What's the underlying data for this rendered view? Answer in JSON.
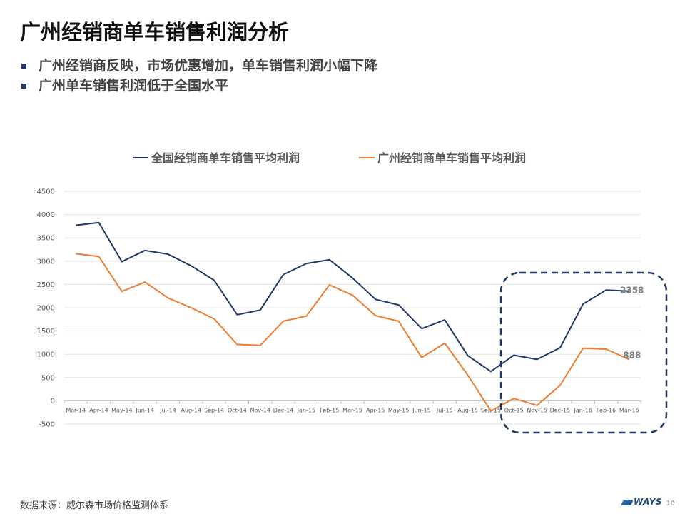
{
  "slide": {
    "title": "广州经销商单车销售利润分析",
    "bullets": [
      "广州经销商反映，市场优惠增加，单车销售利润小幅下降",
      "广州单车销售利润低于全国水平"
    ],
    "source": "数据来源：威尔森市场价格监测体系",
    "logo_text": "WAYS",
    "page_number": "10"
  },
  "colors": {
    "national": "#1f3864",
    "guangzhou": "#ed7d31",
    "bullet": "#1f3864",
    "highlight_box": "#1f3864"
  },
  "chart_data": {
    "type": "line",
    "title": "",
    "xlabel": "",
    "ylabel": "",
    "categories": [
      "Mar-14",
      "Apr-14",
      "May-14",
      "Jun-14",
      "Jul-14",
      "Aug-14",
      "Sep-14",
      "Oct-14",
      "Nov-14",
      "Dec-14",
      "Jan-15",
      "Feb-15",
      "Mar-15",
      "Apr-15",
      "May-15",
      "Jun-15",
      "Jul-15",
      "Aug-15",
      "Sep-15",
      "Oct-15",
      "Nov-15",
      "Dec-15",
      "Jan-16",
      "Feb-16",
      "Mar-16"
    ],
    "ylim": [
      -500,
      4500
    ],
    "yticks": [
      -500,
      0,
      500,
      1000,
      1500,
      2000,
      2500,
      3000,
      3500,
      4000,
      4500
    ],
    "grid": true,
    "legend_position": "top",
    "series": [
      {
        "name": "全国经销商单车销售平均利润",
        "color": "#1f3864",
        "values": [
          3770,
          3830,
          2990,
          3230,
          3150,
          2900,
          2590,
          1850,
          1950,
          2710,
          2950,
          3030,
          2640,
          2180,
          2060,
          1550,
          1740,
          970,
          630,
          980,
          890,
          1140,
          2080,
          2380,
          2358
        ],
        "end_label": "2358"
      },
      {
        "name": "广州经销商单车销售平均利润",
        "color": "#ed7d31",
        "values": [
          3160,
          3100,
          2350,
          2550,
          2210,
          2000,
          1760,
          1210,
          1190,
          1710,
          1820,
          2490,
          2270,
          1830,
          1710,
          930,
          1240,
          550,
          -220,
          50,
          -100,
          330,
          1130,
          1110,
          888
        ],
        "end_label": "888"
      }
    ],
    "highlight": {
      "style": "dashed rounded box",
      "from": "Oct-15",
      "to": "Mar-16"
    }
  }
}
